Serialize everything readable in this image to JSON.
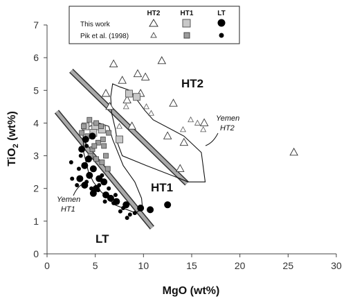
{
  "chart_data": {
    "type": "scatter",
    "xlabel": "MgO (wt%)",
    "ylabel_main": "TiO",
    "ylabel_sub": "2",
    "ylabel_rest": " (wt%)",
    "xlim": [
      0,
      30
    ],
    "ylim": [
      0,
      7
    ],
    "xticks": [
      "0",
      "5",
      "10",
      "15",
      "20",
      "25",
      "30"
    ],
    "yticks": [
      "0",
      "1",
      "2",
      "3",
      "4",
      "5",
      "6",
      "7"
    ],
    "legend": {
      "column_headers": [
        "HT2",
        "HT1",
        "LT"
      ],
      "rows": [
        "This work",
        "Pik et al. (1998)"
      ]
    },
    "field_labels": {
      "ht2": "HT2",
      "ht1": "HT1",
      "lt": "LT",
      "yemen_ht2_line1": "Yemen",
      "yemen_ht2_line2": "HT2",
      "yemen_ht1_line1": "Yemen",
      "yemen_ht1_line2": "HT1"
    },
    "series": [
      {
        "name": "HT2 This work",
        "marker": "triangle-large",
        "points": [
          [
            6.9,
            5.8
          ],
          [
            9.4,
            5.5
          ],
          [
            11.9,
            5.9
          ],
          [
            7.8,
            5.3
          ],
          [
            10.2,
            5.4
          ],
          [
            6.1,
            4.9
          ],
          [
            8.3,
            4.7
          ],
          [
            9.7,
            4.9
          ],
          [
            13.1,
            4.6
          ],
          [
            6.5,
            4.5
          ],
          [
            8.8,
            3.9
          ],
          [
            12.5,
            3.6
          ],
          [
            14.2,
            3.4
          ],
          [
            16.3,
            4.0
          ],
          [
            25.6,
            3.1
          ],
          [
            13.8,
            2.6
          ]
        ]
      },
      {
        "name": "HT2 Pik et al. (1998)",
        "marker": "triangle-small",
        "points": [
          [
            10.3,
            4.5
          ],
          [
            10.8,
            4.3
          ],
          [
            14.9,
            4.1
          ],
          [
            14.1,
            3.8
          ],
          [
            16.2,
            3.8
          ],
          [
            15.6,
            4.0
          ],
          [
            7.5,
            3.9
          ],
          [
            8.2,
            4.5
          ]
        ]
      },
      {
        "name": "HT1 This work",
        "marker": "square-large",
        "points": [
          [
            8.5,
            4.9
          ],
          [
            9.3,
            4.8
          ],
          [
            5.0,
            3.9
          ],
          [
            5.7,
            3.8
          ],
          [
            4.0,
            3.9
          ],
          [
            7.5,
            3.5
          ],
          [
            4.8,
            3.7
          ]
        ]
      },
      {
        "name": "HT1 Pik et al. (1998)",
        "marker": "square-small",
        "points": [
          [
            4.4,
            4.1
          ],
          [
            3.8,
            3.9
          ],
          [
            5.1,
            4.0
          ],
          [
            5.6,
            3.9
          ],
          [
            4.2,
            3.6
          ],
          [
            5.3,
            3.4
          ],
          [
            5.9,
            3.3
          ],
          [
            6.1,
            3.0
          ],
          [
            5.7,
            2.8
          ],
          [
            4.7,
            3.2
          ],
          [
            5.1,
            2.9
          ],
          [
            4.5,
            3.0
          ],
          [
            3.6,
            3.7
          ],
          [
            6.3,
            2.6
          ],
          [
            5.8,
            3.5
          ],
          [
            4.9,
            3.3
          ],
          [
            6.4,
            3.7
          ]
        ]
      },
      {
        "name": "LT This work",
        "marker": "circle-large",
        "points": [
          [
            4.0,
            3.5
          ],
          [
            4.7,
            3.6
          ],
          [
            3.6,
            3.2
          ],
          [
            4.3,
            2.9
          ],
          [
            3.9,
            2.7
          ],
          [
            4.8,
            2.6
          ],
          [
            3.4,
            2.3
          ],
          [
            4.4,
            2.4
          ],
          [
            5.4,
            2.3
          ],
          [
            3.9,
            2.1
          ],
          [
            5.1,
            2.0
          ],
          [
            6.1,
            1.8
          ],
          [
            4.8,
            1.85
          ],
          [
            7.2,
            1.6
          ],
          [
            6.6,
            1.7
          ],
          [
            8.2,
            1.5
          ],
          [
            9.7,
            1.4
          ],
          [
            10.7,
            1.35
          ],
          [
            12.5,
            1.5
          ],
          [
            5.9,
            2.2
          ]
        ]
      },
      {
        "name": "LT Pik et al. (1998)",
        "marker": "circle-small",
        "points": [
          [
            2.5,
            2.8
          ],
          [
            3.5,
            3.0
          ],
          [
            2.6,
            2.3
          ],
          [
            4.6,
            2.0
          ],
          [
            3.1,
            2.1
          ],
          [
            5.3,
            1.95
          ],
          [
            6.0,
            1.6
          ],
          [
            6.9,
            1.55
          ],
          [
            5.7,
            2.4
          ],
          [
            7.6,
            1.3
          ],
          [
            8.6,
            1.2
          ],
          [
            9.1,
            1.25
          ],
          [
            8.3,
            1.1
          ],
          [
            7.9,
            1.4
          ],
          [
            4.1,
            3.3
          ],
          [
            3.3,
            2.6
          ],
          [
            4.1,
            2.2
          ],
          [
            5.4,
            2.1
          ],
          [
            7.1,
            1.8
          ],
          [
            6.4,
            2.0
          ]
        ]
      }
    ],
    "fields": {
      "yemen_ht2_poly": [
        [
          6.8,
          5.2
        ],
        [
          7.6,
          5.1
        ],
        [
          8.6,
          5.0
        ],
        [
          10.1,
          4.4
        ],
        [
          11.0,
          4.1
        ],
        [
          14.2,
          3.6
        ],
        [
          16.0,
          3.1
        ],
        [
          16.4,
          2.2
        ],
        [
          14.6,
          2.2
        ],
        [
          13.8,
          2.3
        ],
        [
          10.3,
          2.7
        ],
        [
          7.8,
          3.0
        ],
        [
          7.3,
          3.4
        ],
        [
          7.1,
          3.8
        ],
        [
          6.7,
          4.3
        ],
        [
          6.6,
          4.8
        ]
      ],
      "yemen_ht1_poly": [
        [
          3.7,
          3.9
        ],
        [
          4.4,
          3.9
        ],
        [
          5.4,
          4.0
        ],
        [
          6.4,
          3.9
        ],
        [
          6.8,
          3.5
        ],
        [
          7.9,
          2.7
        ],
        [
          9.1,
          2.2
        ],
        [
          9.8,
          1.7
        ],
        [
          9.9,
          1.4
        ],
        [
          9.2,
          1.25
        ],
        [
          7.0,
          1.5
        ],
        [
          5.6,
          1.9
        ],
        [
          4.8,
          2.2
        ],
        [
          4.3,
          2.5
        ],
        [
          3.8,
          3.1
        ]
      ],
      "div_upper": [
        [
          2.5,
          5.6
        ],
        [
          14.5,
          2.15
        ]
      ],
      "div_lower": [
        [
          1.0,
          4.35
        ],
        [
          10.9,
          0.8
        ]
      ]
    },
    "grid": false,
    "legend_position": "top-center"
  }
}
